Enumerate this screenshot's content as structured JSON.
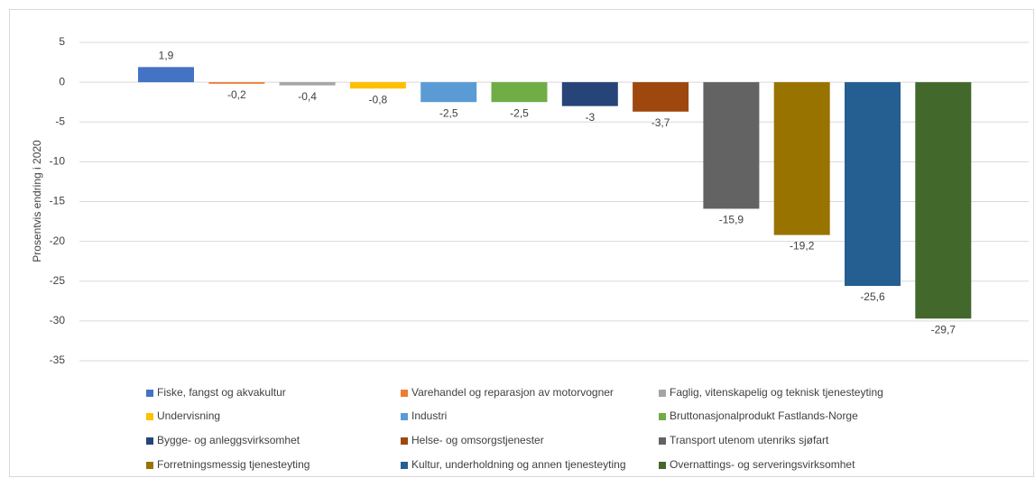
{
  "chart_data": {
    "type": "bar",
    "y_label": "Prosentvis endring i 2020",
    "ylim": [
      -35,
      5
    ],
    "yticks": [
      5,
      0,
      -5,
      -10,
      -15,
      -20,
      -25,
      -30,
      -35
    ],
    "grid": true,
    "series": [
      {
        "name": "Fiske, fangst og akvakultur",
        "color": "#4472c4",
        "values": [
          1.9
        ],
        "value_labels": [
          "1,9"
        ]
      },
      {
        "name": "Varehandel og reparasjon av motorvogner",
        "color": "#ed7d31",
        "values": [
          -0.2
        ],
        "value_labels": [
          "-0,2"
        ]
      },
      {
        "name": "Faglig, vitenskapelig og teknisk tjenesteyting",
        "color": "#a5a5a5",
        "values": [
          -0.4
        ],
        "value_labels": [
          "-0,4"
        ]
      },
      {
        "name": "Undervisning",
        "color": "#ffc000",
        "values": [
          -0.8
        ],
        "value_labels": [
          "-0,8"
        ]
      },
      {
        "name": "Industri",
        "color": "#5b9bd5",
        "values": [
          -2.5
        ],
        "value_labels": [
          "-2,5"
        ]
      },
      {
        "name": "Bruttonasjonalprodukt Fastlands-Norge",
        "color": "#70ad47",
        "values": [
          -2.5
        ],
        "value_labels": [
          "-2,5"
        ]
      },
      {
        "name": "Bygge- og anleggsvirksomhet",
        "color": "#264478",
        "values": [
          -3
        ]
      },
      {
        "name": "Helse- og omsorgstjenester",
        "color": "#9e480e",
        "values": [
          -3.7
        ],
        "value_labels": [
          "-3,7"
        ]
      },
      {
        "name": "Transport utenom utenriks sjøfart",
        "color": "#636363",
        "values": [
          -15.9
        ],
        "value_labels": [
          "-15,9"
        ]
      },
      {
        "name": "Forretningsmessig tjenesteyting",
        "color": "#997300",
        "values": [
          -19.2
        ],
        "value_labels": [
          "-19,2"
        ]
      },
      {
        "name": "Kultur, underholdning og annen tjenesteyting",
        "color": "#255e91",
        "values": [
          -25.6
        ],
        "value_labels": [
          "-25,6"
        ]
      },
      {
        "name": "Overnattings- og serveringsvirksomhet",
        "color": "#43682b",
        "values": [
          -29.7
        ],
        "value_labels": [
          "-29,7"
        ]
      }
    ]
  }
}
